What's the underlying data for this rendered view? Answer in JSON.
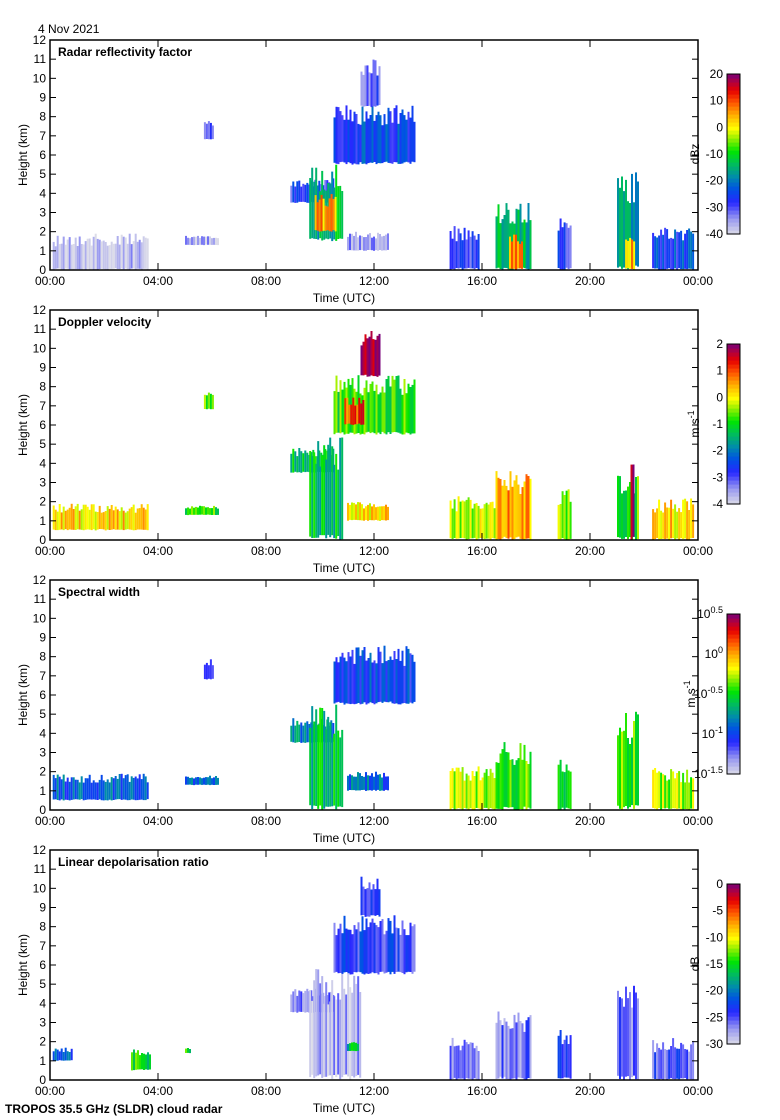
{
  "header": {
    "date": "4 Nov 2021",
    "footer": "TROPOS 35.5 GHz (SLDR) cloud radar"
  },
  "chart_data": [
    {
      "type": "heatmap",
      "title": "Radar reflectivity factor",
      "xlabel": "Time (UTC)",
      "ylabel": "Height (km)",
      "xlim": [
        0,
        24
      ],
      "ylim": [
        0,
        12
      ],
      "xticks": [
        "00:00",
        "04:00",
        "08:00",
        "12:00",
        "16:00",
        "20:00",
        "00:00"
      ],
      "yticks": [
        "0",
        "1",
        "2",
        "3",
        "4",
        "5",
        "6",
        "7",
        "8",
        "9",
        "10",
        "11",
        "12"
      ],
      "colorbar": {
        "label": "dBz",
        "scale": "linear",
        "range": [
          -40,
          20
        ],
        "ticks": [
          "20",
          "10",
          "0",
          "-10",
          "-20",
          "-30",
          "-40"
        ]
      },
      "features": [
        {
          "t": [
            0.1,
            3.6
          ],
          "h": [
            0.0,
            1.9
          ],
          "value": -38
        },
        {
          "t": [
            5.0,
            6.2
          ],
          "h": [
            1.3,
            1.8
          ],
          "value": -37
        },
        {
          "t": [
            5.7,
            6.0
          ],
          "h": [
            6.8,
            7.9
          ],
          "value": -32
        },
        {
          "t": [
            8.9,
            10.5
          ],
          "h": [
            3.5,
            4.8
          ],
          "value": -28
        },
        {
          "t": [
            9.6,
            10.8
          ],
          "h": [
            1.5,
            5.5
          ],
          "value": -15
        },
        {
          "t": [
            9.8,
            10.6
          ],
          "h": [
            2.0,
            4.0
          ],
          "value": 5
        },
        {
          "t": [
            10.5,
            13.5
          ],
          "h": [
            5.5,
            8.6
          ],
          "value": -25
        },
        {
          "t": [
            11.5,
            12.2
          ],
          "h": [
            8.5,
            11.0
          ],
          "value": -30
        },
        {
          "t": [
            11.0,
            12.5
          ],
          "h": [
            1.0,
            2.0
          ],
          "value": -35
        },
        {
          "t": [
            14.8,
            15.9
          ],
          "h": [
            0.0,
            2.3
          ],
          "value": -30
        },
        {
          "t": [
            16.5,
            17.8
          ],
          "h": [
            0.0,
            3.6
          ],
          "value": -15
        },
        {
          "t": [
            17.0,
            17.5
          ],
          "h": [
            0.0,
            2.0
          ],
          "value": 5
        },
        {
          "t": [
            18.8,
            19.3
          ],
          "h": [
            0.0,
            2.7
          ],
          "value": -28
        },
        {
          "t": [
            21.0,
            21.8
          ],
          "h": [
            0.0,
            5.2
          ],
          "value": -15
        },
        {
          "t": [
            21.3,
            21.6
          ],
          "h": [
            0.0,
            2.0
          ],
          "value": 5
        },
        {
          "t": [
            22.3,
            23.8
          ],
          "h": [
            0.0,
            2.2
          ],
          "value": -25
        }
      ]
    },
    {
      "type": "heatmap",
      "title": "Doppler velocity",
      "xlabel": "Time (UTC)",
      "ylabel": "Height (km)",
      "xlim": [
        0,
        24
      ],
      "ylim": [
        0,
        12
      ],
      "xticks": [
        "00:00",
        "04:00",
        "08:00",
        "12:00",
        "16:00",
        "20:00",
        "00:00"
      ],
      "yticks": [
        "0",
        "1",
        "2",
        "3",
        "4",
        "5",
        "6",
        "7",
        "8",
        "9",
        "10",
        "11",
        "12"
      ],
      "colorbar": {
        "label": "m s-1",
        "scale": "linear",
        "range": [
          -4,
          2
        ],
        "ticks": [
          "2",
          "1",
          "0",
          "-1",
          "-2",
          "-3",
          "-4"
        ]
      },
      "features": [
        {
          "t": [
            0.1,
            3.6
          ],
          "h": [
            0.5,
            1.9
          ],
          "value": 0.2
        },
        {
          "t": [
            5.0,
            6.2
          ],
          "h": [
            1.3,
            1.8
          ],
          "value": -0.8
        },
        {
          "t": [
            5.7,
            6.0
          ],
          "h": [
            6.8,
            7.9
          ],
          "value": -0.6
        },
        {
          "t": [
            8.9,
            10.5
          ],
          "h": [
            3.5,
            4.8
          ],
          "value": -1.2
        },
        {
          "t": [
            9.6,
            10.8
          ],
          "h": [
            0.0,
            5.5
          ],
          "value": -1.3
        },
        {
          "t": [
            10.5,
            13.5
          ],
          "h": [
            5.5,
            8.6
          ],
          "value": -0.8
        },
        {
          "t": [
            10.9,
            11.6
          ],
          "h": [
            6.0,
            7.5
          ],
          "value": 1.0
        },
        {
          "t": [
            11.5,
            12.2
          ],
          "h": [
            8.5,
            11.0
          ],
          "value": 1.9
        },
        {
          "t": [
            11.0,
            12.5
          ],
          "h": [
            1.0,
            2.0
          ],
          "value": 0.2
        },
        {
          "t": [
            14.8,
            16.5
          ],
          "h": [
            0.0,
            2.3
          ],
          "value": -0.3
        },
        {
          "t": [
            16.5,
            17.8
          ],
          "h": [
            0.0,
            3.6
          ],
          "value": 0.5
        },
        {
          "t": [
            18.8,
            19.3
          ],
          "h": [
            0.0,
            2.7
          ],
          "value": -0.6
        },
        {
          "t": [
            21.0,
            21.8
          ],
          "h": [
            0.0,
            3.5
          ],
          "value": -0.8
        },
        {
          "t": [
            21.5,
            21.6
          ],
          "h": [
            0.0,
            5.2
          ],
          "value": 1.9
        },
        {
          "t": [
            22.3,
            23.8
          ],
          "h": [
            0.0,
            2.2
          ],
          "value": 0.2
        }
      ]
    },
    {
      "type": "heatmap",
      "title": "Spectral width",
      "xlabel": "Time (UTC)",
      "ylabel": "Height (km)",
      "xlim": [
        0,
        24
      ],
      "ylim": [
        0,
        12
      ],
      "xticks": [
        "00:00",
        "04:00",
        "08:00",
        "12:00",
        "16:00",
        "20:00",
        "00:00"
      ],
      "yticks": [
        "0",
        "1",
        "2",
        "3",
        "4",
        "5",
        "6",
        "7",
        "8",
        "9",
        "10",
        "11",
        "12"
      ],
      "colorbar": {
        "label": "m s-1",
        "scale": "log10",
        "range": [
          -1.5,
          0.5
        ],
        "ticks": [
          "10^0.5",
          "10^0",
          "10^-0.5",
          "10^-1",
          "10^-1.5"
        ]
      },
      "features": [
        {
          "t": [
            0.1,
            3.6
          ],
          "h": [
            0.5,
            1.9
          ],
          "value": -0.9
        },
        {
          "t": [
            5.0,
            6.2
          ],
          "h": [
            1.3,
            1.8
          ],
          "value": -0.9
        },
        {
          "t": [
            5.7,
            6.0
          ],
          "h": [
            6.8,
            7.9
          ],
          "value": -1.1
        },
        {
          "t": [
            8.9,
            10.5
          ],
          "h": [
            3.5,
            4.8
          ],
          "value": -0.8
        },
        {
          "t": [
            9.6,
            10.8
          ],
          "h": [
            0.0,
            5.5
          ],
          "value": -0.6
        },
        {
          "t": [
            10.5,
            13.5
          ],
          "h": [
            5.5,
            8.6
          ],
          "value": -1.0
        },
        {
          "t": [
            11.0,
            12.5
          ],
          "h": [
            1.0,
            2.0
          ],
          "value": -0.9
        },
        {
          "t": [
            14.8,
            16.5
          ],
          "h": [
            0.0,
            2.3
          ],
          "value": -0.3
        },
        {
          "t": [
            16.5,
            17.8
          ],
          "h": [
            0.0,
            3.6
          ],
          "value": -0.4
        },
        {
          "t": [
            18.8,
            19.3
          ],
          "h": [
            0.0,
            2.7
          ],
          "value": -0.6
        },
        {
          "t": [
            21.0,
            21.8
          ],
          "h": [
            0.0,
            5.2
          ],
          "value": -0.4
        },
        {
          "t": [
            22.3,
            23.8
          ],
          "h": [
            0.0,
            2.2
          ],
          "value": -0.3
        }
      ]
    },
    {
      "type": "heatmap",
      "title": "Linear depolarisation ratio",
      "xlabel": "Time (UTC)",
      "ylabel": "Height (km)",
      "xlim": [
        0,
        24
      ],
      "ylim": [
        0,
        12
      ],
      "xticks": [
        "00:00",
        "04:00",
        "08:00",
        "12:00",
        "16:00",
        "20:00",
        "00:00"
      ],
      "yticks": [
        "0",
        "1",
        "2",
        "3",
        "4",
        "5",
        "6",
        "7",
        "8",
        "9",
        "10",
        "11",
        "12"
      ],
      "colorbar": {
        "label": "dB",
        "scale": "linear",
        "range": [
          -30,
          0
        ],
        "ticks": [
          "0",
          "-5",
          "-10",
          "-15",
          "-20",
          "-25",
          "-30"
        ]
      },
      "features": [
        {
          "t": [
            0.1,
            0.8
          ],
          "h": [
            1.0,
            1.7
          ],
          "value": -22
        },
        {
          "t": [
            3.0,
            3.7
          ],
          "h": [
            0.5,
            1.7
          ],
          "value": -15
        },
        {
          "t": [
            5.0,
            5.2
          ],
          "h": [
            1.4,
            1.7
          ],
          "value": -15
        },
        {
          "t": [
            8.9,
            10.5
          ],
          "h": [
            3.5,
            4.8
          ],
          "value": -26
        },
        {
          "t": [
            9.6,
            11.5
          ],
          "h": [
            0.0,
            6.0
          ],
          "value": -28
        },
        {
          "t": [
            10.5,
            13.5
          ],
          "h": [
            5.5,
            8.6
          ],
          "value": -24
        },
        {
          "t": [
            11.5,
            12.2
          ],
          "h": [
            8.5,
            10.7
          ],
          "value": -24
        },
        {
          "t": [
            11.0,
            11.4
          ],
          "h": [
            1.5,
            2.0
          ],
          "value": -17
        },
        {
          "t": [
            14.8,
            15.9
          ],
          "h": [
            0.0,
            2.3
          ],
          "value": -26
        },
        {
          "t": [
            16.5,
            17.8
          ],
          "h": [
            0.0,
            3.6
          ],
          "value": -26
        },
        {
          "t": [
            18.8,
            19.3
          ],
          "h": [
            0.0,
            2.7
          ],
          "value": -24
        },
        {
          "t": [
            21.0,
            21.8
          ],
          "h": [
            0.0,
            5.2
          ],
          "value": -26
        },
        {
          "t": [
            22.3,
            23.8
          ],
          "h": [
            0.0,
            2.2
          ],
          "value": -25
        }
      ]
    }
  ]
}
